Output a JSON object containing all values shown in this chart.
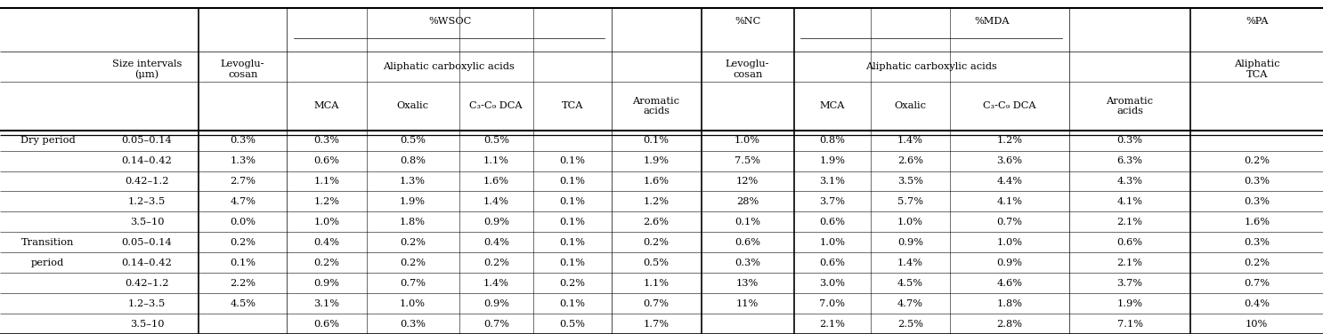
{
  "subheader_wsoc": "Aliphatic carboxylic acids",
  "subheader_mda": "Aliphatic carboxylic acids",
  "rows": [
    [
      "Dry period",
      "0.05–0.14",
      "0.3%",
      "0.3%",
      "0.5%",
      "0.5%",
      "",
      "0.1%",
      "1.0%",
      "0.8%",
      "1.4%",
      "1.2%",
      "0.3%",
      ""
    ],
    [
      "",
      "0.14–0.42",
      "1.3%",
      "0.6%",
      "0.8%",
      "1.1%",
      "0.1%",
      "1.9%",
      "7.5%",
      "1.9%",
      "2.6%",
      "3.6%",
      "6.3%",
      "0.2%"
    ],
    [
      "",
      "0.42–1.2",
      "2.7%",
      "1.1%",
      "1.3%",
      "1.6%",
      "0.1%",
      "1.6%",
      "12%",
      "3.1%",
      "3.5%",
      "4.4%",
      "4.3%",
      "0.3%"
    ],
    [
      "",
      "1.2–3.5",
      "4.7%",
      "1.2%",
      "1.9%",
      "1.4%",
      "0.1%",
      "1.2%",
      "28%",
      "3.7%",
      "5.7%",
      "4.1%",
      "4.1%",
      "0.3%"
    ],
    [
      "",
      "3.5–10",
      "0.0%",
      "1.0%",
      "1.8%",
      "0.9%",
      "0.1%",
      "2.6%",
      "0.1%",
      "0.6%",
      "1.0%",
      "0.7%",
      "2.1%",
      "1.6%"
    ],
    [
      "Transition",
      "0.05–0.14",
      "0.2%",
      "0.4%",
      "0.2%",
      "0.4%",
      "0.1%",
      "0.2%",
      "0.6%",
      "1.0%",
      "0.9%",
      "1.0%",
      "0.6%",
      "0.3%"
    ],
    [
      "period",
      "0.14–0.42",
      "0.1%",
      "0.2%",
      "0.2%",
      "0.2%",
      "0.1%",
      "0.5%",
      "0.3%",
      "0.6%",
      "1.4%",
      "0.9%",
      "2.1%",
      "0.2%"
    ],
    [
      "",
      "0.42–1.2",
      "2.2%",
      "0.9%",
      "0.7%",
      "1.4%",
      "0.2%",
      "1.1%",
      "13%",
      "3.0%",
      "4.5%",
      "4.6%",
      "3.7%",
      "0.7%"
    ],
    [
      "",
      "1.2–3.5",
      "4.5%",
      "3.1%",
      "1.0%",
      "0.9%",
      "0.1%",
      "0.7%",
      "11%",
      "7.0%",
      "4.7%",
      "1.8%",
      "1.9%",
      "0.4%"
    ],
    [
      "",
      "3.5–10",
      "",
      "0.6%",
      "0.3%",
      "0.7%",
      "0.5%",
      "1.7%",
      "",
      "2.1%",
      "2.5%",
      "2.8%",
      "7.1%",
      "10%"
    ]
  ],
  "bg_color": "#ffffff",
  "text_color": "#000000",
  "line_color": "#000000",
  "font_size": 8.2
}
